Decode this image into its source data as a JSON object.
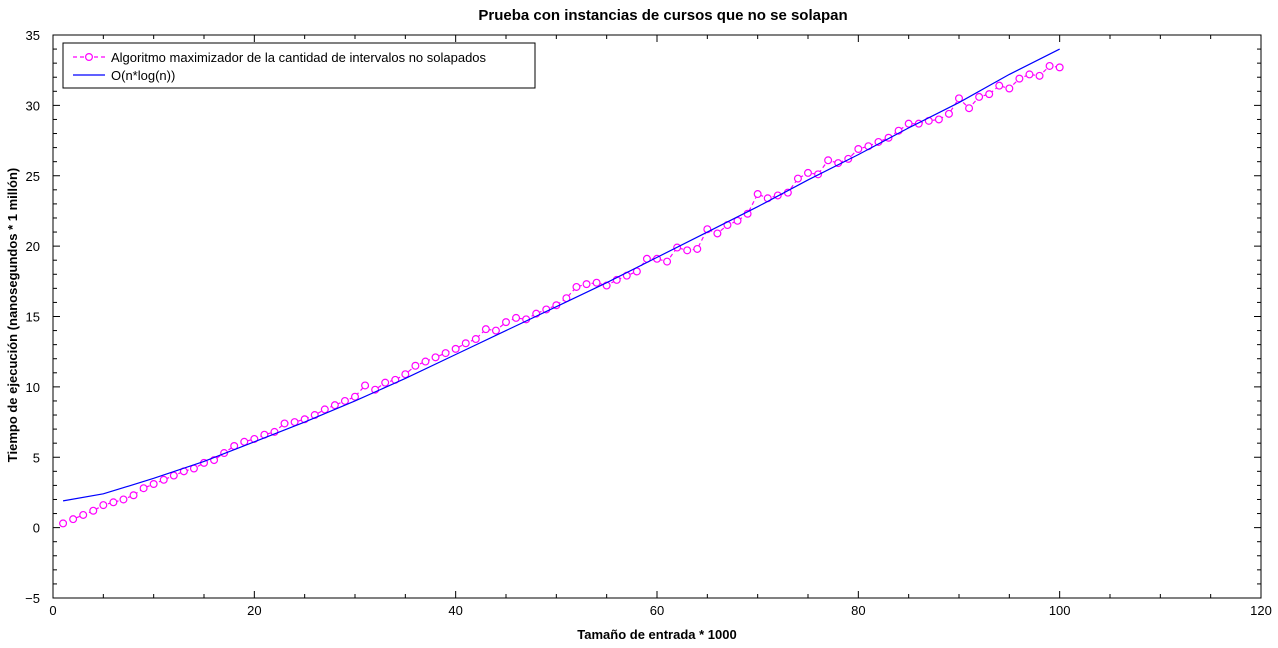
{
  "chart_data": {
    "type": "line",
    "title": "Prueba con instancias de cursos que no se solapan",
    "xlabel": "Tamaño de entrada * 1000",
    "ylabel": "Tiempo de ejecución (nanosegundos * 1 millón)",
    "xlim": [
      0,
      120
    ],
    "ylim": [
      -5,
      35
    ],
    "xticks": [
      0,
      20,
      40,
      60,
      80,
      100,
      120
    ],
    "yticks": [
      -5,
      0,
      5,
      10,
      15,
      20,
      25,
      30,
      35
    ],
    "x_minor_step": 5,
    "y_minor_step": 1,
    "grid": false,
    "legend_position": "top-left",
    "series": [
      {
        "name": "Algoritmo maximizador de la cantidad de intervalos no solapados",
        "color": "#ff00ff",
        "line_style": "dashed",
        "marker": "circle",
        "x": [
          1,
          2,
          3,
          4,
          5,
          6,
          7,
          8,
          9,
          10,
          11,
          12,
          13,
          14,
          15,
          16,
          17,
          18,
          19,
          20,
          21,
          22,
          23,
          24,
          25,
          26,
          27,
          28,
          29,
          30,
          31,
          32,
          33,
          34,
          35,
          36,
          37,
          38,
          39,
          40,
          41,
          42,
          43,
          44,
          45,
          46,
          47,
          48,
          49,
          50,
          51,
          52,
          53,
          54,
          55,
          56,
          57,
          58,
          59,
          60,
          61,
          62,
          63,
          64,
          65,
          66,
          67,
          68,
          69,
          70,
          71,
          72,
          73,
          74,
          75,
          76,
          77,
          78,
          79,
          80,
          81,
          82,
          83,
          84,
          85,
          86,
          87,
          88,
          89,
          90,
          91,
          92,
          93,
          94,
          95,
          96,
          97,
          98,
          99,
          100
        ],
        "values": [
          0.3,
          0.6,
          0.9,
          1.2,
          1.6,
          1.8,
          2.0,
          2.3,
          2.8,
          3.1,
          3.4,
          3.7,
          4.0,
          4.2,
          4.6,
          4.8,
          5.3,
          5.8,
          6.1,
          6.3,
          6.6,
          6.8,
          7.4,
          7.5,
          7.7,
          8.0,
          8.4,
          8.7,
          9.0,
          9.3,
          10.1,
          9.8,
          10.3,
          10.5,
          10.9,
          11.5,
          11.8,
          12.1,
          12.4,
          12.7,
          13.1,
          13.4,
          14.1,
          14.0,
          14.6,
          14.9,
          14.8,
          15.2,
          15.5,
          15.8,
          16.3,
          17.1,
          17.3,
          17.4,
          17.2,
          17.6,
          17.9,
          18.2,
          19.1,
          19.1,
          18.9,
          19.9,
          19.7,
          19.8,
          21.2,
          20.9,
          21.5,
          21.8,
          22.3,
          23.7,
          23.4,
          23.6,
          23.8,
          24.8,
          25.2,
          25.1,
          26.1,
          25.9,
          26.2,
          26.9,
          27.1,
          27.4,
          27.7,
          28.2,
          28.7,
          28.7,
          28.9,
          29.0,
          29.4,
          30.5,
          29.8,
          30.6,
          30.8,
          31.4,
          31.2,
          31.9,
          32.2,
          32.1,
          32.8,
          32.7
        ]
      },
      {
        "name": "O(n*log(n))",
        "color": "#0000ff",
        "line_style": "solid",
        "marker": "none",
        "x": [
          1,
          5,
          10,
          15,
          20,
          25,
          30,
          35,
          40,
          45,
          50,
          55,
          60,
          65,
          70,
          75,
          80,
          85,
          90,
          95,
          100
        ],
        "values": [
          1.9,
          2.4,
          3.5,
          4.7,
          6.1,
          7.5,
          9.0,
          10.6,
          12.3,
          14.0,
          15.7,
          17.4,
          19.2,
          21.0,
          22.8,
          24.7,
          26.5,
          28.4,
          30.2,
          32.2,
          34.0
        ]
      }
    ]
  }
}
